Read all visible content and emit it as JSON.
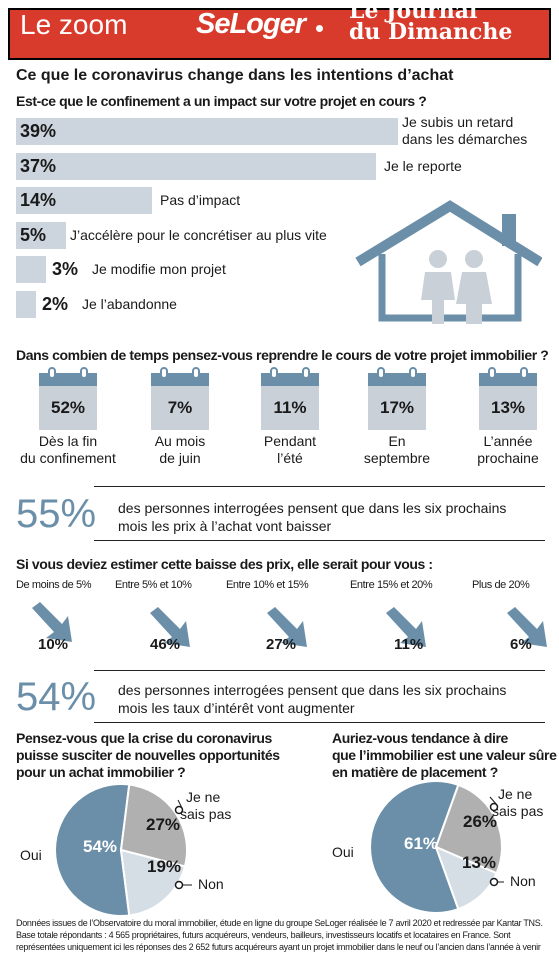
{
  "header": {
    "zoom": "Le zoom",
    "brand1": "SeLoger",
    "brand2_line1": "Le Journal",
    "brand2_line2": "du Dimanche"
  },
  "title": "Ce que le coronavirus change dans les intentions d’achat",
  "colors": {
    "banner": "#d83b2c",
    "accent": "#6c8fa9",
    "bar": "#ccd4dd",
    "pie_dark": "#6c8fa9",
    "pie_mid": "#b0b0b0",
    "pie_light": "#d5dde5"
  },
  "chart_data": [
    {
      "type": "bar",
      "orientation": "horizontal",
      "question": "Est-ce que le confinement a un impact sur votre projet en cours ?",
      "categories": [
        "Je subis un retard dans les démarches",
        "Je le reporte",
        "Pas d’impact",
        "J’accélère pour le concrétiser au plus vite",
        "Je modifie mon projet",
        "Je l’abandonne"
      ],
      "values": [
        39,
        37,
        14,
        5,
        3,
        2
      ],
      "labels": [
        "39%",
        "37%",
        "14%",
        "5%",
        "3%",
        "2%"
      ]
    },
    {
      "type": "bar",
      "question": "Dans combien de temps pensez-vous reprendre le cours de votre projet immobilier ?",
      "categories": [
        "Dès la fin du confinement",
        "Au mois de juin",
        "Pendant l’été",
        "En septembre",
        "L’année prochaine"
      ],
      "values": [
        52,
        7,
        11,
        17,
        13
      ],
      "labels": [
        "52%",
        "7%",
        "11%",
        "17%",
        "13%"
      ]
    },
    {
      "type": "bar",
      "question": "Si vous deviez estimer cette baisse des prix, elle serait pour vous :",
      "categories": [
        "De moins de 5%",
        "Entre 5% et 10%",
        "Entre 10% et 15%",
        "Entre 15% et 20%",
        "Plus de 20%"
      ],
      "values": [
        10,
        46,
        27,
        11,
        6
      ],
      "labels": [
        "10%",
        "46%",
        "27%",
        "11%",
        "6%"
      ]
    },
    {
      "type": "pie",
      "question": "Pensez-vous que la crise du coronavirus puisse susciter de nouvelles opportunités pour un achat immobilier ?",
      "categories": [
        "Oui",
        "Je ne sais pas",
        "Non"
      ],
      "values": [
        54,
        27,
        19
      ],
      "labels": [
        "54%",
        "27%",
        "19%"
      ]
    },
    {
      "type": "pie",
      "question": "Auriez-vous tendance à dire que l’immobilier est une valeur sûre en matière de placement ?",
      "categories": [
        "Oui",
        "Je ne sais pas",
        "Non"
      ],
      "values": [
        61,
        26,
        13
      ],
      "labels": [
        "61%",
        "26%",
        "13%"
      ]
    }
  ],
  "stat1": {
    "value": "55%",
    "line1": "des personnes interrogées pensent que dans les six prochains",
    "line2": "mois les prix à l’achat vont baisser"
  },
  "stat2": {
    "value": "54%",
    "line1": "des personnes interrogées pensent que dans les six prochains",
    "line2": "mois les taux d’intérêt vont augmenter"
  },
  "pie1_q": [
    "Pensez-vous que la crise du coronavirus",
    "puisse susciter de nouvelles opportunités",
    "pour un achat immobilier ?"
  ],
  "pie2_q": [
    "Auriez-vous tendance à dire",
    "que l’immobilier est une valeur sûre",
    "en matière de placement ?"
  ],
  "pie_labels": {
    "oui": "Oui",
    "nsp1": "Je ne",
    "nsp2": "sais pas",
    "non": "Non"
  },
  "footnote": [
    "Données issues de l’Observatoire du moral immobilier, étude en ligne du groupe SeLoger réalisée le 7 avril 2020 et redressée par Kantar TNS.",
    "Base totale répondants : 4 565 propriétaires, futurs acquéreurs, vendeurs, bailleurs, investisseurs locatifs et locataires en France. Sont",
    "représentées uniquement ici les réponses des 2 652 futurs acquéreurs ayant un projet immobilier dans le neuf ou l’ancien dans l’année à venir"
  ]
}
